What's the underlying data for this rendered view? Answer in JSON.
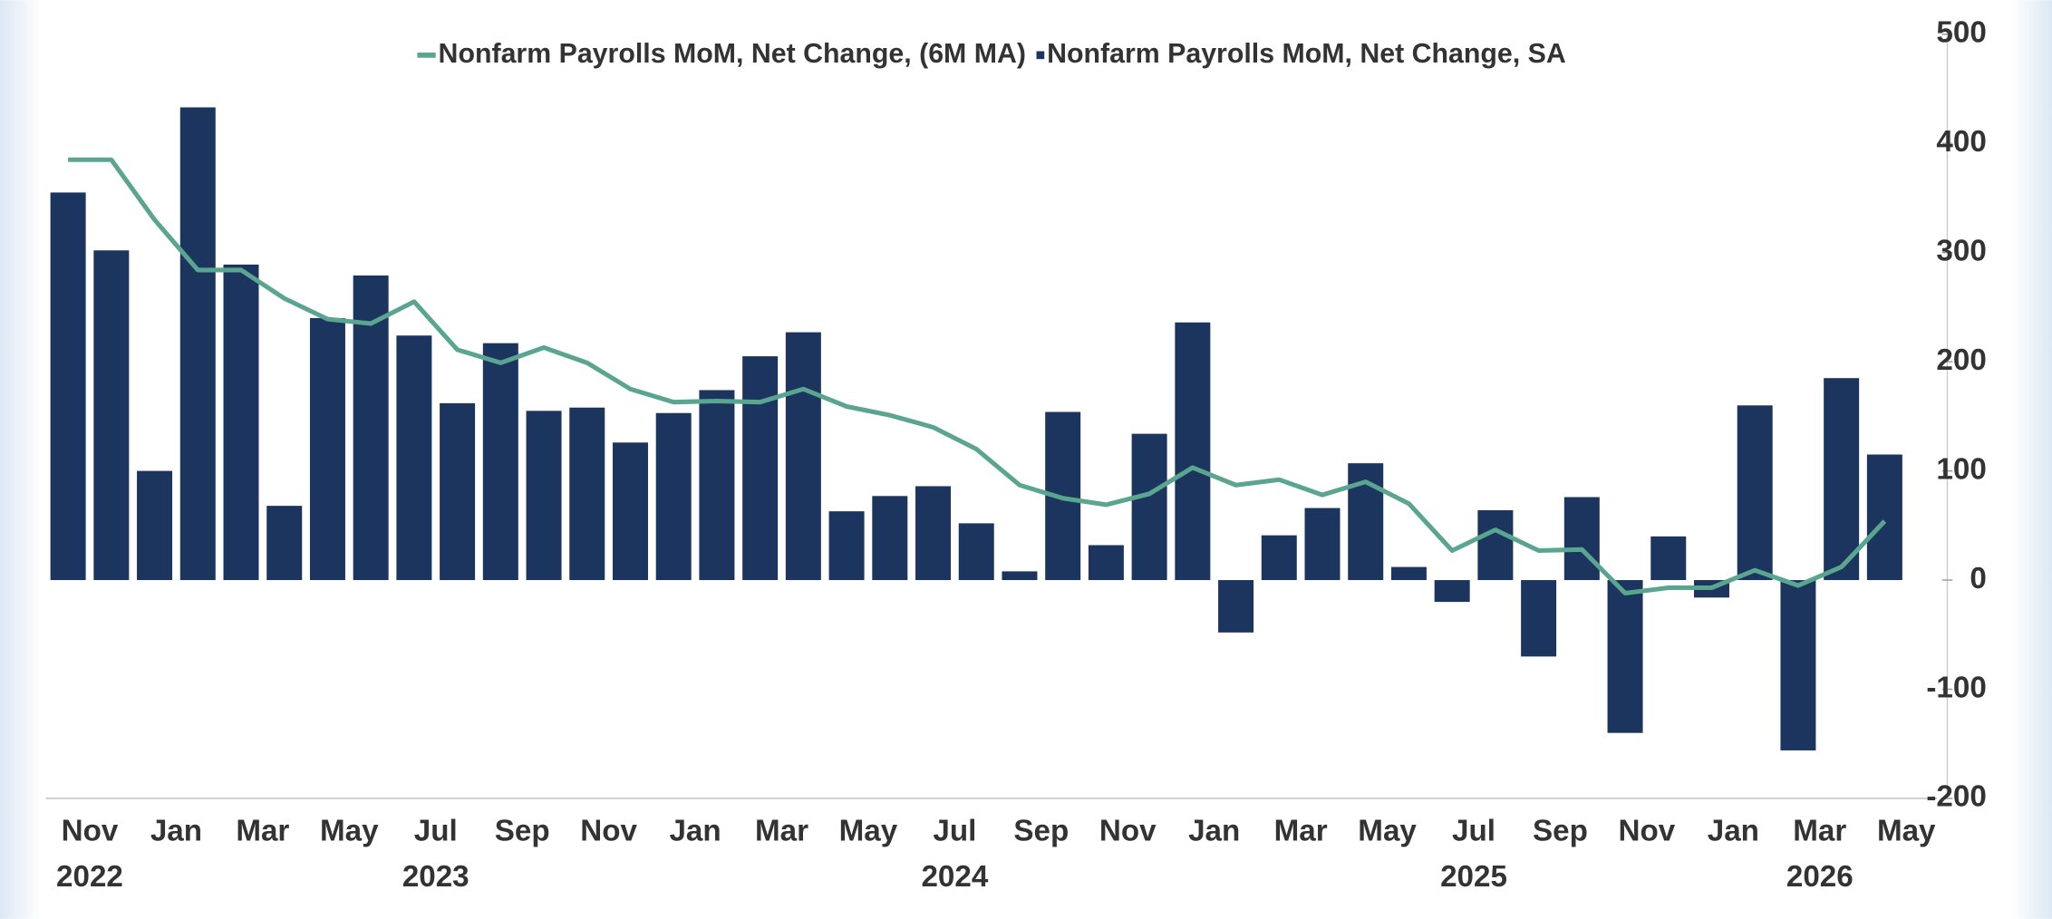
{
  "chart_data": {
    "type": "bar_line",
    "legend_position": "top",
    "categories": [
      "Nov",
      null,
      "Jan",
      null,
      "Mar",
      null,
      "May",
      null,
      "Jul",
      null,
      "Sep",
      null,
      "Nov",
      null,
      "Jan",
      null,
      "Mar",
      null,
      "May",
      null,
      "Jul",
      null,
      "Sep",
      null,
      "Nov",
      null,
      "Jan",
      null,
      "Mar",
      null,
      "May",
      null,
      "Jul",
      null,
      "Sep",
      null,
      "Nov",
      null,
      "Jan",
      null,
      "Mar",
      null,
      "May"
    ],
    "category_years": [
      "2022",
      null,
      null,
      null,
      null,
      null,
      null,
      null,
      "2023",
      null,
      null,
      null,
      null,
      null,
      null,
      null,
      null,
      null,
      null,
      null,
      "2024",
      null,
      null,
      null,
      null,
      null,
      null,
      null,
      null,
      null,
      null,
      null,
      "2025",
      null,
      null,
      null,
      null,
      null,
      null,
      null,
      "2026",
      null,
      null
    ],
    "series": [
      {
        "name": "Nonfarm Payrolls MoM, Net Change, (6M MA)",
        "kind": "line",
        "color": "#5aa58f",
        "values": [
          385,
          385,
          330,
          284,
          284,
          258,
          239,
          235,
          255,
          211,
          199,
          213,
          199,
          175,
          163,
          164,
          163,
          175,
          159,
          151,
          140,
          120,
          87,
          75,
          69,
          79,
          103,
          87,
          92,
          78,
          90,
          70,
          27,
          46,
          27,
          28,
          -12,
          -7,
          -7,
          9,
          -5,
          12,
          54
        ]
      },
      {
        "name": "Nonfarm Payrolls MoM, Net Change, SA",
        "kind": "bar",
        "color": "#1c355e",
        "values": [
          355,
          302,
          100,
          433,
          289,
          68,
          240,
          279,
          224,
          162,
          217,
          155,
          158,
          126,
          153,
          174,
          205,
          227,
          63,
          77,
          86,
          52,
          8,
          154,
          32,
          134,
          236,
          -48,
          41,
          66,
          107,
          12,
          -20,
          64,
          -70,
          76,
          -140,
          40,
          -16,
          160,
          -156,
          185,
          115
        ]
      }
    ],
    "ylim": [
      -200,
      500
    ],
    "yticks": [
      -200,
      -100,
      0,
      100,
      200,
      300,
      400,
      500
    ],
    "grid": false
  }
}
